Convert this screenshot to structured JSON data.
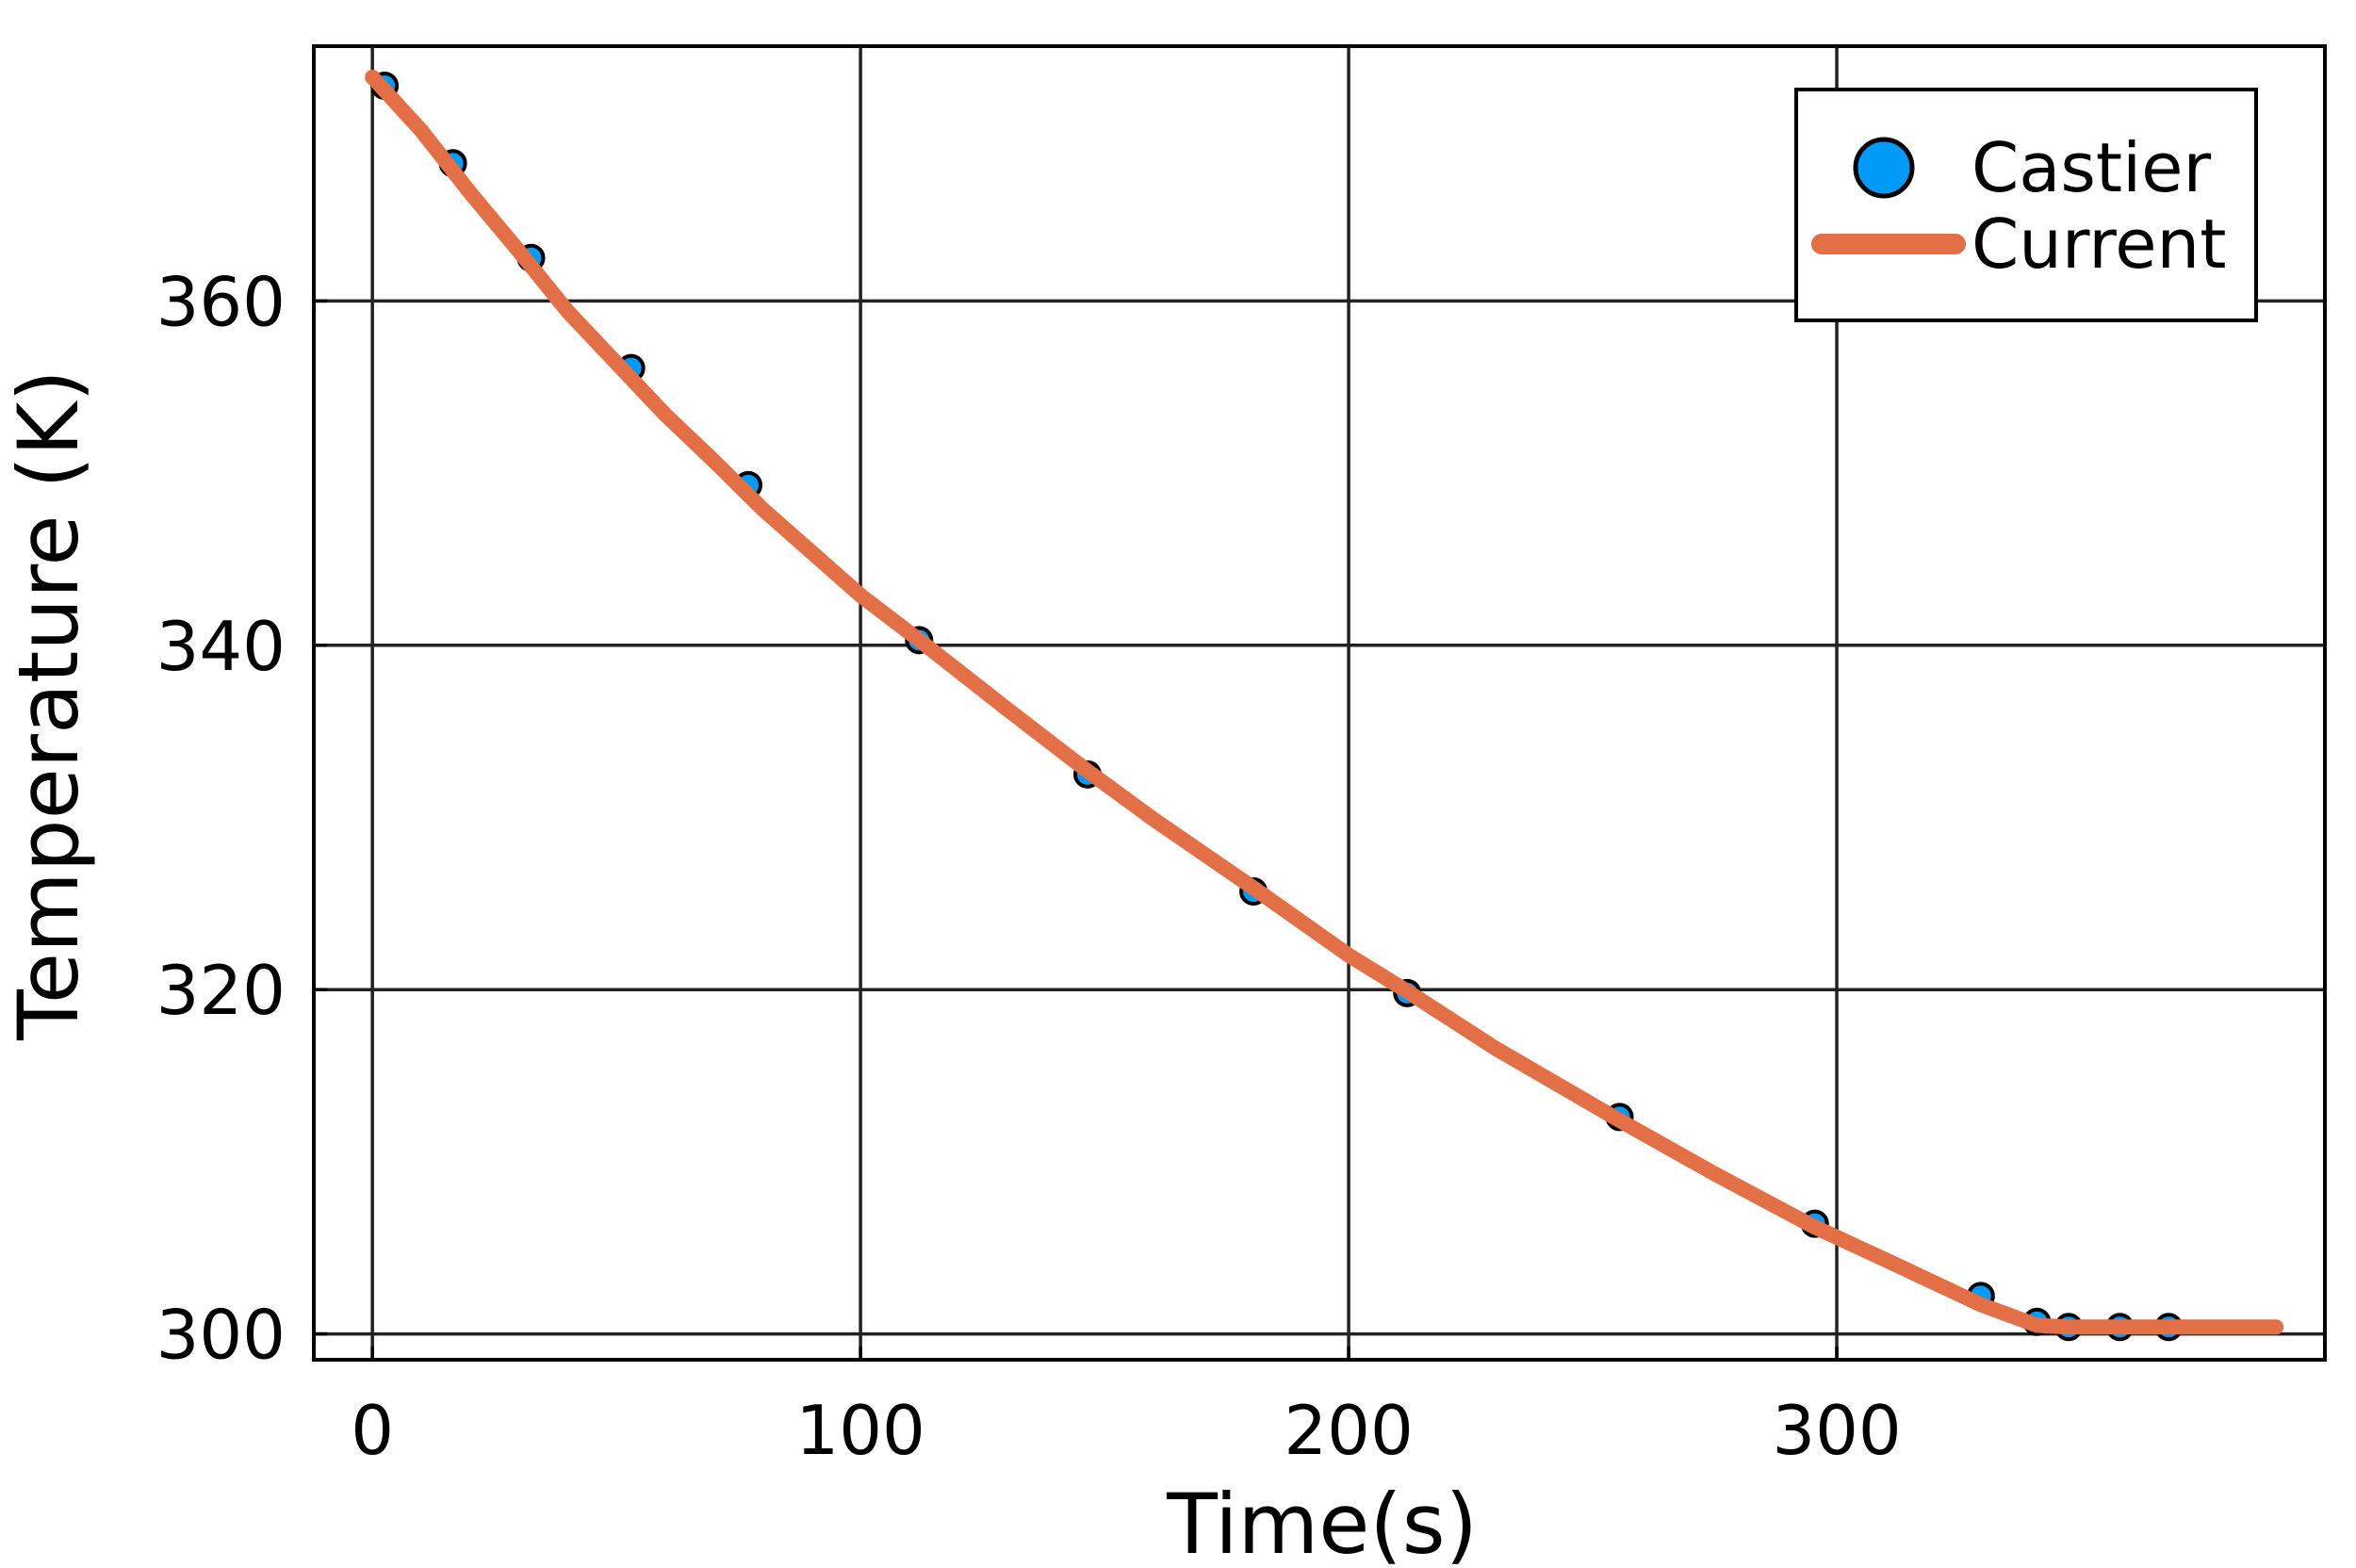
{
  "chart_data": {
    "type": "line",
    "xlabel": "Time(s)",
    "ylabel": "Temperature (K)",
    "xlim": [
      -12,
      400
    ],
    "ylim": [
      298.5,
      374.8
    ],
    "xticks": [
      0,
      100,
      200,
      300
    ],
    "yticks": [
      300,
      320,
      340,
      360
    ],
    "grid": true,
    "legend_position": "top-right",
    "series": [
      {
        "name": "Castier",
        "kind": "scatter",
        "color": "#009af9",
        "x": [
          2.5,
          16.5,
          32.5,
          53,
          77,
          112,
          146.5,
          180.5,
          212,
          255.5,
          295.5,
          329.5,
          341,
          347.5,
          358,
          368
        ],
        "y": [
          372.5,
          368.0,
          362.5,
          356.1,
          349.3,
          340.3,
          332.5,
          325.7,
          319.8,
          312.6,
          306.4,
          302.2,
          300.7,
          300.4,
          300.4,
          300.4
        ]
      },
      {
        "name": "Current",
        "kind": "line",
        "color": "#e26f46",
        "x": [
          0,
          10,
          20,
          30,
          40,
          50,
          60,
          70,
          80,
          90,
          100,
          112,
          130,
          146.5,
          160,
          180.5,
          200,
          212,
          230,
          255.5,
          275,
          295.5,
          310,
          329.5,
          341,
          347.5,
          360,
          370,
          380,
          390
        ],
        "y": [
          373.0,
          369.9,
          366.3,
          362.9,
          359.4,
          356.4,
          353.4,
          350.7,
          347.9,
          345.4,
          342.9,
          340.3,
          336.3,
          332.7,
          329.9,
          325.9,
          322.0,
          319.9,
          316.6,
          312.4,
          309.3,
          306.2,
          304.3,
          301.7,
          300.5,
          300.4,
          300.4,
          300.4,
          300.4,
          300.4
        ]
      }
    ]
  }
}
